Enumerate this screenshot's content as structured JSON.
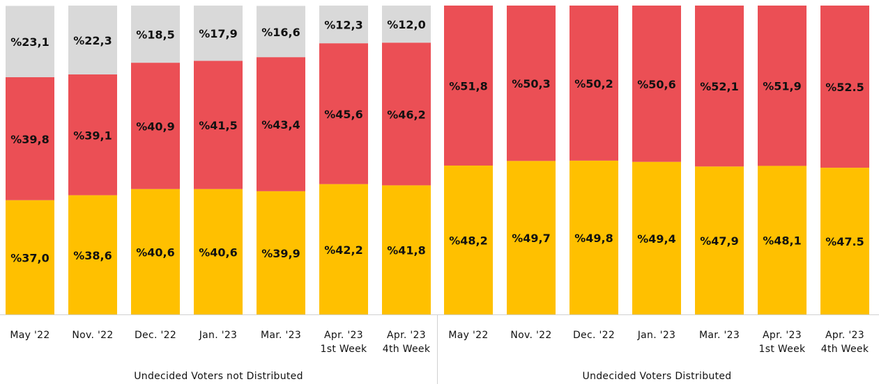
{
  "chart_data": [
    {
      "type": "stacked_bar",
      "xlabel": "Undecided Voters not Distributed",
      "categories": [
        "May '22",
        "Nov. '22",
        "Dec. '22",
        "Jan. '23",
        "Mar. '23",
        "Apr. '23\n1st Week",
        "Apr. '23\n4th Week"
      ],
      "ylim": [
        0,
        100
      ],
      "series": [
        {
          "color": "#ffc000",
          "values": [
            37.0,
            38.6,
            40.6,
            40.6,
            39.9,
            42.2,
            41.8
          ],
          "value_labels": [
            "%37,0",
            "%38,6",
            "%40,6",
            "%40,6",
            "%39,9",
            "%42,2",
            "%41,8"
          ]
        },
        {
          "color": "#eb4f55",
          "values": [
            39.8,
            39.1,
            40.9,
            41.5,
            43.4,
            45.6,
            46.2
          ],
          "value_labels": [
            "%39,8",
            "%39,1",
            "%40,9",
            "%41,5",
            "%43,4",
            "%45,6",
            "%46,2"
          ]
        },
        {
          "color": "#d9d9d9",
          "values": [
            23.1,
            22.3,
            18.5,
            17.9,
            16.6,
            12.3,
            12.0
          ],
          "value_labels": [
            "%23,1",
            "%22,3",
            "%18,5",
            "%17,9",
            "%16,6",
            "%12,3",
            "%12,0"
          ]
        }
      ]
    },
    {
      "type": "stacked_bar",
      "xlabel": "Undecided Voters Distributed",
      "categories": [
        "May '22",
        "Nov. '22",
        "Dec. '22",
        "Jan. '23",
        "Mar. '23",
        "Apr. '23\n1st Week",
        "Apr. '23\n4th Week"
      ],
      "ylim": [
        0,
        100
      ],
      "series": [
        {
          "color": "#ffc000",
          "values": [
            48.2,
            49.7,
            49.8,
            49.4,
            47.9,
            48.1,
            47.5
          ],
          "value_labels": [
            "%48,2",
            "%49,7",
            "%49,8",
            "%49,4",
            "%47,9",
            "%48,1",
            "%47.5"
          ]
        },
        {
          "color": "#eb4f55",
          "values": [
            51.8,
            50.3,
            50.2,
            50.6,
            52.1,
            51.9,
            52.5
          ],
          "value_labels": [
            "%51,8",
            "%50,3",
            "%50,2",
            "%50,6",
            "%52,1",
            "%51,9",
            "%52.5"
          ]
        }
      ]
    }
  ]
}
